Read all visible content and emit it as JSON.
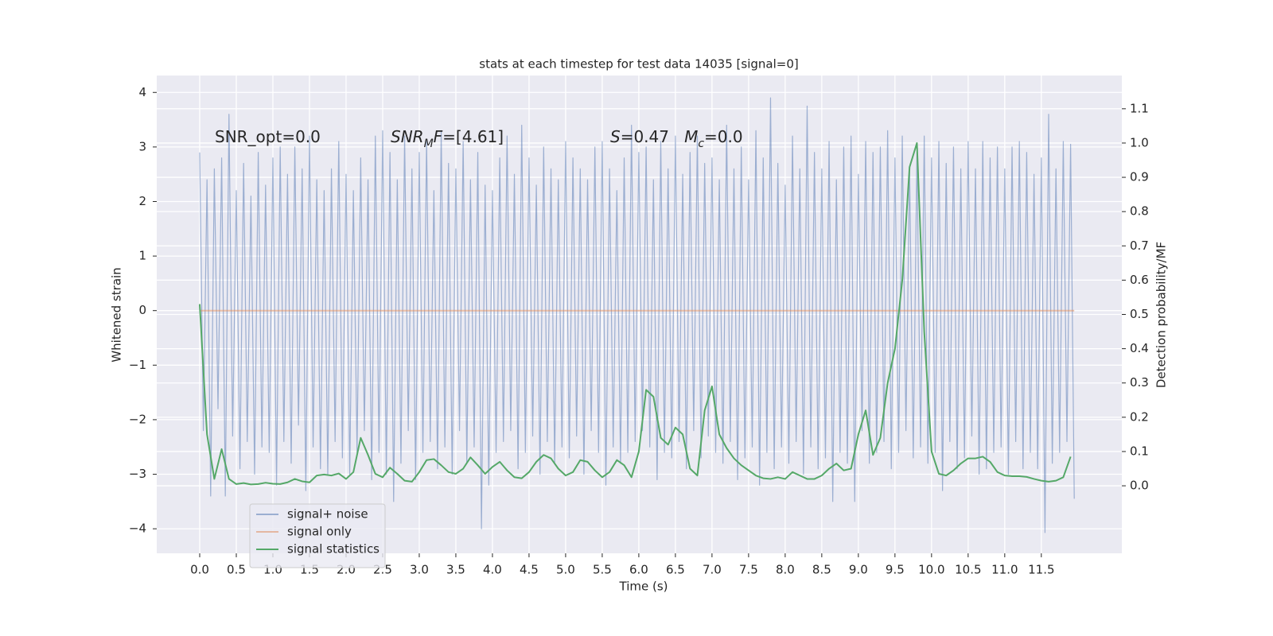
{
  "chart_data": {
    "type": "line",
    "title": "stats at each timestep for test data 14035 [signal=0]",
    "x_label": "Time (s)",
    "y_label": "Whitened strain",
    "y2_label": "Detection probability/MF",
    "background": "#eaeaf2",
    "grid": true,
    "legend_position": "lower left",
    "xlim": [
      -0.587,
      12.6
    ],
    "ylim": [
      -4.45,
      4.31
    ],
    "y2lim": [
      -0.197,
      1.197
    ],
    "xticks": [
      {
        "value": 0,
        "label": "0.0"
      },
      0.5,
      {
        "value": 1,
        "label": "1.0"
      },
      1.5,
      {
        "value": 2,
        "label": "2.0"
      },
      2.5,
      {
        "value": 3,
        "label": "3.0"
      },
      3.5,
      {
        "value": 4,
        "label": "4.0"
      },
      4.5,
      {
        "value": 5,
        "label": "5.0"
      },
      5.5,
      {
        "value": 6,
        "label": "6.0"
      },
      6.5,
      {
        "value": 7,
        "label": "7.0"
      },
      7.5,
      {
        "value": 8,
        "label": "8.0"
      },
      8.5,
      {
        "value": 9,
        "label": "9.0"
      },
      9.5,
      {
        "value": 10,
        "label": "10.0"
      },
      10.5,
      {
        "value": 11,
        "label": "11.0"
      },
      11.5
    ],
    "yticks": [
      {
        "value": -4,
        "label": "−4"
      },
      {
        "value": -3,
        "label": "−3"
      },
      {
        "value": -2,
        "label": "−2"
      },
      {
        "value": -1,
        "label": "−1"
      },
      0,
      1,
      2,
      3,
      4
    ],
    "y2ticks": [
      {
        "value": 0,
        "label": "0.0"
      },
      0.1,
      0.2,
      0.3,
      0.4,
      0.5,
      0.6,
      0.7,
      0.8,
      0.9,
      {
        "value": 1,
        "label": "1.0"
      },
      1.1
    ],
    "annotations": [
      {
        "segments": [
          {
            "text": "SNR_opt=0.0",
            "style": "normal"
          }
        ]
      },
      {
        "segments": [
          {
            "text": "SNR",
            "style": "italic"
          },
          {
            "text": "M",
            "style": "sub"
          },
          {
            "text": "F",
            "style": "italic"
          },
          {
            "text": "=[4.61]",
            "style": "normal"
          }
        ]
      },
      {
        "segments": [
          {
            "text": "S",
            "style": "italic"
          },
          {
            "text": "=0.47   ",
            "style": "normal"
          },
          {
            "text": "M",
            "style": "italic"
          },
          {
            "text": "c",
            "style": "sub"
          },
          {
            "text": "=0.0",
            "style": "normal"
          }
        ]
      }
    ],
    "series": [
      {
        "name": "signal+ noise",
        "color": "#4c72b0",
        "alpha": 0.5,
        "axis": "y",
        "x": [
          0,
          0.05,
          0.1,
          0.15,
          0.2,
          0.25,
          0.3,
          0.35,
          0.4,
          0.45,
          0.5,
          0.55,
          0.6,
          0.65,
          0.7,
          0.75,
          0.8,
          0.85,
          0.9,
          0.95,
          1,
          1.05,
          1.1,
          1.15,
          1.2,
          1.25,
          1.3,
          1.35,
          1.4,
          1.45,
          1.5,
          1.55,
          1.6,
          1.65,
          1.7,
          1.75,
          1.8,
          1.85,
          1.9,
          1.95,
          2,
          2.05,
          2.1,
          2.15,
          2.2,
          2.25,
          2.3,
          2.35,
          2.4,
          2.45,
          2.5,
          2.55,
          2.6,
          2.65,
          2.7,
          2.75,
          2.8,
          2.85,
          2.9,
          2.95,
          3,
          3.05,
          3.1,
          3.15,
          3.2,
          3.25,
          3.3,
          3.35,
          3.4,
          3.45,
          3.5,
          3.55,
          3.6,
          3.65,
          3.7,
          3.75,
          3.8,
          3.85,
          3.9,
          3.95,
          4,
          4.05,
          4.1,
          4.15,
          4.2,
          4.25,
          4.3,
          4.35,
          4.4,
          4.45,
          4.5,
          4.55,
          4.6,
          4.65,
          4.7,
          4.75,
          4.8,
          4.85,
          4.9,
          4.95,
          5,
          5.05,
          5.1,
          5.15,
          5.2,
          5.25,
          5.3,
          5.35,
          5.4,
          5.45,
          5.5,
          5.55,
          5.6,
          5.65,
          5.7,
          5.75,
          5.8,
          5.85,
          5.9,
          5.95,
          6,
          6.05,
          6.1,
          6.15,
          6.2,
          6.25,
          6.3,
          6.35,
          6.4,
          6.45,
          6.5,
          6.55,
          6.6,
          6.65,
          6.7,
          6.75,
          6.8,
          6.85,
          6.9,
          6.95,
          7,
          7.05,
          7.1,
          7.15,
          7.2,
          7.25,
          7.3,
          7.35,
          7.4,
          7.45,
          7.5,
          7.55,
          7.6,
          7.65,
          7.7,
          7.75,
          7.8,
          7.85,
          7.9,
          7.95,
          8,
          8.05,
          8.1,
          8.15,
          8.2,
          8.25,
          8.3,
          8.35,
          8.4,
          8.45,
          8.5,
          8.55,
          8.6,
          8.65,
          8.7,
          8.75,
          8.8,
          8.85,
          8.9,
          8.95,
          9,
          9.05,
          9.1,
          9.15,
          9.2,
          9.25,
          9.3,
          9.35,
          9.4,
          9.45,
          9.5,
          9.55,
          9.6,
          9.65,
          9.7,
          9.75,
          9.8,
          9.85,
          9.9,
          9.95,
          10,
          10.05,
          10.1,
          10.15,
          10.2,
          10.25,
          10.3,
          10.35,
          10.4,
          10.45,
          10.5,
          10.55,
          10.6,
          10.65,
          10.7,
          10.75,
          10.8,
          10.85,
          10.9,
          10.95,
          11,
          11.05,
          11.1,
          11.15,
          11.2,
          11.25,
          11.3,
          11.35,
          11.4,
          11.45,
          11.5,
          11.55,
          11.6,
          11.65,
          11.7,
          11.75,
          11.8,
          11.85,
          11.9,
          11.95
        ],
        "values": [
          2.9,
          -2.2,
          2.4,
          -3.4,
          2.6,
          -1.8,
          2.8,
          -3.4,
          3.6,
          -2.3,
          2.2,
          -2.9,
          2.7,
          -2.4,
          2.1,
          -3.0,
          2.9,
          -2.5,
          2.3,
          -2.6,
          2.8,
          -3.2,
          3.0,
          -2.4,
          2.5,
          -2.8,
          3.0,
          -2.1,
          2.6,
          -3.3,
          3.2,
          -2.5,
          2.4,
          -2.9,
          2.2,
          -3.0,
          2.6,
          -2.4,
          3.1,
          -2.7,
          2.5,
          -3.0,
          2.2,
          -2.6,
          2.8,
          -2.2,
          2.4,
          -3.1,
          3.2,
          -2.6,
          3.3,
          -3.0,
          2.9,
          -3.5,
          2.4,
          -2.8,
          3.2,
          -2.2,
          2.6,
          -3.1,
          2.9,
          -2.6,
          3.1,
          -2.4,
          2.2,
          -2.9,
          3.3,
          -2.5,
          2.7,
          -3.0,
          2.6,
          -2.2,
          3.1,
          -2.8,
          2.4,
          -2.5,
          2.9,
          -4.0,
          2.3,
          -3.2,
          2.2,
          -2.6,
          2.8,
          -2.4,
          3.2,
          -2.2,
          2.5,
          -2.9,
          3.4,
          -2.6,
          2.8,
          -2.3,
          2.3,
          -3.0,
          3.0,
          -2.4,
          2.6,
          -2.8,
          2.4,
          -2.5,
          3.1,
          -2.7,
          2.8,
          -2.3,
          2.6,
          -3.0,
          2.4,
          -2.2,
          3.0,
          -2.6,
          3.1,
          -3.2,
          2.6,
          -2.5,
          2.2,
          -2.8,
          2.8,
          -2.6,
          3.4,
          -2.4,
          2.9,
          -2.2,
          3.0,
          -2.5,
          2.4,
          -3.1,
          3.1,
          -2.6,
          2.6,
          -2.7,
          3.2,
          -2.4,
          2.5,
          -2.9,
          2.9,
          -2.2,
          3.2,
          -2.7,
          2.7,
          -2.3,
          2.8,
          -2.6,
          2.4,
          -2.8,
          3.4,
          -2.4,
          2.6,
          -3.1,
          3.0,
          -2.7,
          2.4,
          -2.5,
          3.3,
          -3.2,
          2.8,
          -2.6,
          3.9,
          -2.9,
          2.7,
          -2.5,
          2.3,
          -2.8,
          3.2,
          -2.4,
          2.6,
          -3.0,
          3.75,
          -2.5,
          2.9,
          -2.9,
          2.6,
          -2.7,
          3.1,
          -3.5,
          2.4,
          -2.6,
          3.0,
          -2.8,
          3.2,
          -3.5,
          2.5,
          -2.2,
          3.1,
          -2.8,
          2.9,
          -2.6,
          3.0,
          -2.4,
          3.3,
          -2.9,
          2.8,
          -2.6,
          3.2,
          -2.2,
          2.6,
          -2.7,
          2.9,
          -2.5,
          3.2,
          -2.8,
          2.8,
          -2.6,
          3.1,
          -3.3,
          2.7,
          -2.4,
          3.0,
          -2.9,
          2.6,
          -2.7,
          3.1,
          -2.3,
          2.6,
          -3.0,
          3.1,
          -2.9,
          2.8,
          -2.6,
          3.0,
          -2.5,
          2.6,
          -3.0,
          3.0,
          -2.4,
          3.1,
          -2.9,
          2.9,
          -2.6,
          2.5,
          -2.9,
          2.8,
          -4.07,
          3.6,
          -2.8,
          2.6,
          -2.6,
          3.1,
          -2.4,
          3.05,
          -3.45
        ]
      },
      {
        "name": "signal only",
        "color": "#dd8452",
        "alpha": 0.5,
        "axis": "y",
        "x": [
          0,
          11.95
        ],
        "values": [
          0,
          0
        ]
      },
      {
        "name": "signal statistics",
        "color": "#55a868",
        "alpha": 1,
        "axis": "y2",
        "x": [
          0,
          0.1,
          0.2,
          0.3,
          0.4,
          0.5,
          0.6,
          0.7,
          0.8,
          0.9,
          1,
          1.1,
          1.2,
          1.3,
          1.4,
          1.5,
          1.6,
          1.7,
          1.8,
          1.9,
          2,
          2.1,
          2.2,
          2.3,
          2.4,
          2.5,
          2.6,
          2.7,
          2.8,
          2.9,
          3,
          3.1,
          3.2,
          3.3,
          3.4,
          3.5,
          3.6,
          3.7,
          3.8,
          3.9,
          4,
          4.1,
          4.2,
          4.3,
          4.4,
          4.5,
          4.6,
          4.7,
          4.8,
          4.9,
          5,
          5.1,
          5.2,
          5.3,
          5.4,
          5.5,
          5.6,
          5.7,
          5.8,
          5.9,
          6,
          6.1,
          6.2,
          6.3,
          6.4,
          6.5,
          6.6,
          6.7,
          6.8,
          6.9,
          7,
          7.1,
          7.2,
          7.3,
          7.4,
          7.5,
          7.6,
          7.7,
          7.8,
          7.9,
          8,
          8.1,
          8.2,
          8.3,
          8.4,
          8.5,
          8.6,
          8.7,
          8.8,
          8.9,
          9,
          9.1,
          9.2,
          9.3,
          9.4,
          9.5,
          9.6,
          9.7,
          9.8,
          9.9,
          10,
          10.1,
          10.2,
          10.3,
          10.4,
          10.5,
          10.6,
          10.7,
          10.8,
          10.9,
          11,
          11.1,
          11.2,
          11.3,
          11.4,
          11.5,
          11.6,
          11.7,
          11.8,
          11.9
        ],
        "values": [
          0.53,
          0.15,
          0.02,
          0.107,
          0.02,
          0.005,
          0.008,
          0.004,
          0.005,
          0.009,
          0.006,
          0.005,
          0.01,
          0.02,
          0.013,
          0.01,
          0.03,
          0.033,
          0.03,
          0.036,
          0.02,
          0.04,
          0.14,
          0.09,
          0.035,
          0.025,
          0.053,
          0.035,
          0.015,
          0.012,
          0.04,
          0.075,
          0.078,
          0.06,
          0.04,
          0.035,
          0.05,
          0.083,
          0.06,
          0.035,
          0.055,
          0.07,
          0.045,
          0.025,
          0.022,
          0.04,
          0.07,
          0.09,
          0.08,
          0.05,
          0.03,
          0.04,
          0.075,
          0.07,
          0.045,
          0.025,
          0.04,
          0.075,
          0.06,
          0.025,
          0.1,
          0.28,
          0.26,
          0.14,
          0.12,
          0.17,
          0.15,
          0.05,
          0.03,
          0.22,
          0.29,
          0.15,
          0.11,
          0.08,
          0.06,
          0.045,
          0.03,
          0.022,
          0.02,
          0.025,
          0.02,
          0.04,
          0.03,
          0.02,
          0.02,
          0.03,
          0.05,
          0.065,
          0.045,
          0.05,
          0.15,
          0.22,
          0.09,
          0.14,
          0.3,
          0.4,
          0.6,
          0.93,
          1.0,
          0.45,
          0.1,
          0.035,
          0.03,
          0.045,
          0.065,
          0.08,
          0.08,
          0.085,
          0.07,
          0.04,
          0.03,
          0.028,
          0.028,
          0.026,
          0.02,
          0.015,
          0.012,
          0.015,
          0.025,
          0.085
        ]
      }
    ]
  }
}
